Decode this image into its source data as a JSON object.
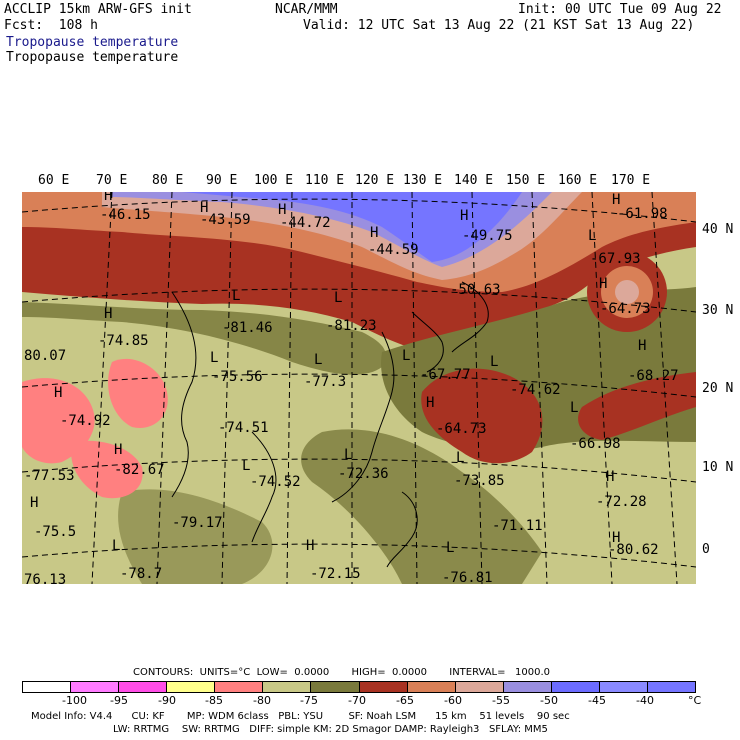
{
  "header": {
    "model": "ACCLIP 15km ARW-GFS init",
    "org": "NCAR/MMM",
    "init": "Init: 00 UTC Tue 09 Aug 22",
    "fcst": "Fcst:  108 h",
    "valid": "Valid: 12 UTC Sat 13 Aug 22 (21 KST Sat 13 Aug 22)",
    "field1": "Tropopause temperature",
    "field2": "Tropopause temperature"
  },
  "axes": {
    "lon_labels": [
      "60 E",
      "70 E",
      "80 E",
      "90 E",
      "100 E",
      "110 E",
      "120 E",
      "130 E",
      "140 E",
      "150 E",
      "160 E",
      "170 E"
    ],
    "lat_labels": [
      "40 N",
      "30 N",
      "20 N",
      "10 N",
      "0"
    ]
  },
  "map_labels": [
    {
      "t": "H"
    },
    {
      "t": "-46.15"
    },
    {
      "t": "H"
    },
    {
      "t": "-43.59"
    },
    {
      "t": "H"
    },
    {
      "t": "-44.72"
    },
    {
      "t": "H"
    },
    {
      "t": "-44.59"
    },
    {
      "t": "H"
    },
    {
      "t": "-49.75"
    },
    {
      "t": "-50.63"
    },
    {
      "t": "H"
    },
    {
      "t": "-61.98"
    },
    {
      "t": "L"
    },
    {
      "t": "-67.93"
    },
    {
      "t": "H"
    },
    {
      "t": "-64.73"
    },
    {
      "t": "L"
    },
    {
      "t": "-81.46"
    },
    {
      "t": "L"
    },
    {
      "t": "-81.23"
    },
    {
      "t": "H"
    },
    {
      "t": "-74.85"
    },
    {
      "t": "80.07"
    },
    {
      "t": "L"
    },
    {
      "t": "-75.56"
    },
    {
      "t": "L"
    },
    {
      "t": "-77.3"
    },
    {
      "t": "L"
    },
    {
      "t": "-67.77"
    },
    {
      "t": "L"
    },
    {
      "t": "-74.62"
    },
    {
      "t": "H"
    },
    {
      "t": "-68.27"
    },
    {
      "t": "H"
    },
    {
      "t": "-74.92"
    },
    {
      "t": "-74.51"
    },
    {
      "t": "H"
    },
    {
      "t": "-64.73"
    },
    {
      "t": "L"
    },
    {
      "t": "-66.98"
    },
    {
      "t": "H"
    },
    {
      "t": "-82.67"
    },
    {
      "t": "-77.53"
    },
    {
      "t": "L"
    },
    {
      "t": "-74.52"
    },
    {
      "t": "L"
    },
    {
      "t": "-72.36"
    },
    {
      "t": "L"
    },
    {
      "t": "-73.85"
    },
    {
      "t": "H"
    },
    {
      "t": "-72.28"
    },
    {
      "t": "H"
    },
    {
      "t": "-75.5"
    },
    {
      "t": "-79.17"
    },
    {
      "t": "-71.11"
    },
    {
      "t": "H"
    },
    {
      "t": "-80.62"
    },
    {
      "t": "L"
    },
    {
      "t": "-78.7"
    },
    {
      "t": "H"
    },
    {
      "t": "-72.15"
    },
    {
      "t": "L"
    },
    {
      "t": "-76.81"
    },
    {
      "t": "76.13"
    }
  ],
  "legend": {
    "contours": "CONTOURS:  UNITS=°C  LOW=  0.0000       HIGH=  0.0000       INTERVAL=   1000.0",
    "colors": [
      "#ffffff",
      "#ff7bff",
      "#ff4de6",
      "#ffff8c",
      "#ff8080",
      "#c8c887",
      "#7a7a3c",
      "#a83222",
      "#d98057",
      "#dca89a",
      "#9a8fe0",
      "#6c6cff",
      "#8a8aff",
      "#7575ff"
    ],
    "ticks": [
      "-100",
      "-95",
      "-90",
      "-85",
      "-80",
      "-75",
      "-70",
      "-65",
      "-60",
      "-55",
      "-50",
      "-45",
      "-40",
      "°C"
    ]
  },
  "footer": {
    "line1": "Model Info: V4.4      CU: KF       MP: WDM 6class   PBL: YSU        SF: Noah LSM      15 km    51 levels    90 sec",
    "line2": "LW: RRTMG    SW: RRTMG   DIFF: simple KM: 2D Smagor DAMP: Rayleigh3   SFLAY: MM5"
  }
}
